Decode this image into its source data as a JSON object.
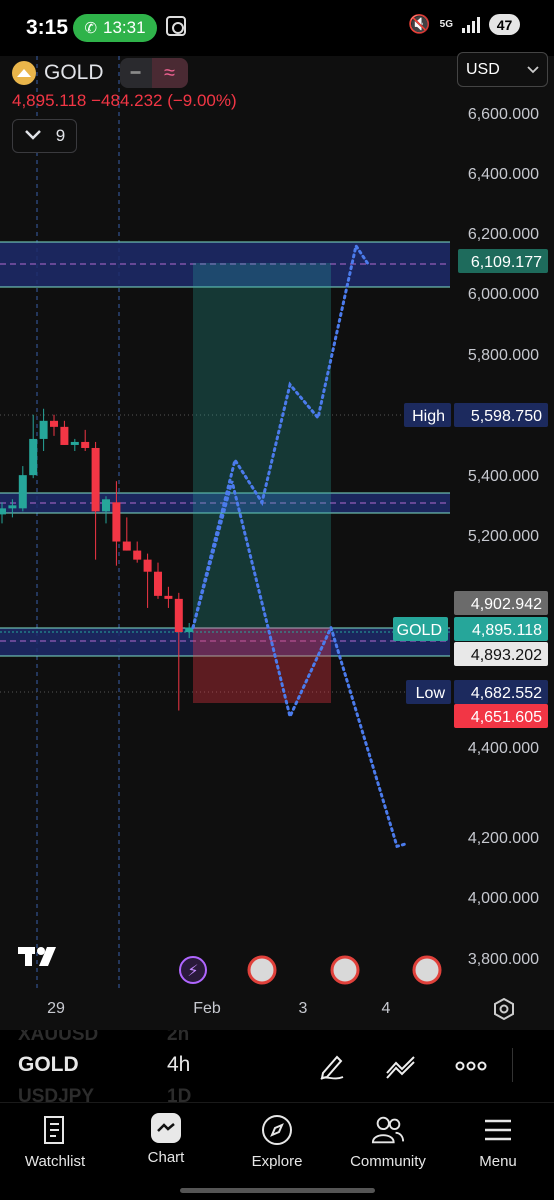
{
  "status_bar": {
    "time": "3:15",
    "call_duration": "13:31",
    "network": "5G",
    "battery": "47"
  },
  "symbol": {
    "name": "GOLD",
    "price": "4,895.118",
    "change": "−484.232 (−9.00%)",
    "indicator_count": "9",
    "currency": "USD"
  },
  "price_axis": {
    "ticks": [
      "6,600.000",
      "6,400.000",
      "6,200.000",
      "6,000.000",
      "5,800.000",
      "5,400.000",
      "5,200.000",
      "4,400.000",
      "4,200.000",
      "4,000.000",
      "3,800.000"
    ],
    "tags": {
      "tp": "6,109.177",
      "high_label": "High",
      "high_value": "5,598.750",
      "upper": "4,902.942",
      "symbol_label": "GOLD",
      "last": "4,895.118",
      "lower": "4,893.202",
      "low_label": "Low",
      "low_value": "4,682.552",
      "sl": "4,651.605"
    }
  },
  "time_axis": {
    "labels": [
      "29",
      "Feb",
      "3",
      "4"
    ]
  },
  "toolbar": {
    "symbol": "GOLD",
    "interval": "4h",
    "prev_symbol": "XAUUSD",
    "prev_interval": "2h",
    "next_symbol": "USDJPY",
    "next_interval": "1D"
  },
  "nav": {
    "watchlist": "Watchlist",
    "chart": "Chart",
    "explore": "Explore",
    "community": "Community",
    "menu": "Menu"
  },
  "colors": {
    "bull": "#26a69a",
    "bear": "#f23645",
    "projection": "#4b7bec",
    "zone": "#1d2a6b"
  },
  "chart_data": {
    "type": "candlestick",
    "yrange": [
      3700,
      6700
    ],
    "candles": [
      {
        "o": 5270,
        "h": 5310,
        "l": 5240,
        "c": 5290
      },
      {
        "o": 5290,
        "h": 5320,
        "l": 5260,
        "c": 5300
      },
      {
        "o": 5290,
        "h": 5430,
        "l": 5280,
        "c": 5400
      },
      {
        "o": 5400,
        "h": 5600,
        "l": 5390,
        "c": 5520
      },
      {
        "o": 5520,
        "h": 5620,
        "l": 5480,
        "c": 5580
      },
      {
        "o": 5580,
        "h": 5600,
        "l": 5530,
        "c": 5560
      },
      {
        "o": 5560,
        "h": 5580,
        "l": 5500,
        "c": 5500
      },
      {
        "o": 5500,
        "h": 5520,
        "l": 5480,
        "c": 5510
      },
      {
        "o": 5510,
        "h": 5550,
        "l": 5480,
        "c": 5490
      },
      {
        "o": 5490,
        "h": 5510,
        "l": 5120,
        "c": 5280
      },
      {
        "o": 5280,
        "h": 5330,
        "l": 5240,
        "c": 5320
      },
      {
        "o": 5310,
        "h": 5380,
        "l": 5100,
        "c": 5180
      },
      {
        "o": 5180,
        "h": 5260,
        "l": 5150,
        "c": 5150
      },
      {
        "o": 5150,
        "h": 5180,
        "l": 5110,
        "c": 5120
      },
      {
        "o": 5120,
        "h": 5140,
        "l": 4960,
        "c": 5080
      },
      {
        "o": 5080,
        "h": 5110,
        "l": 4990,
        "c": 5000
      },
      {
        "o": 5000,
        "h": 5030,
        "l": 4960,
        "c": 4990
      },
      {
        "o": 4990,
        "h": 5010,
        "l": 4620,
        "c": 4880
      },
      {
        "o": 4880,
        "h": 4910,
        "l": 4860,
        "c": 4895
      }
    ],
    "projection_up": [
      [
        4895,
        0
      ],
      [
        5450,
        1
      ],
      [
        5310,
        2
      ],
      [
        5700,
        3
      ],
      [
        5590,
        4
      ],
      [
        6160,
        5
      ],
      [
        6100,
        6
      ]
    ],
    "projection_down": [
      [
        4895,
        0
      ],
      [
        5380,
        1
      ],
      [
        4600,
        2
      ],
      [
        4895,
        3
      ],
      [
        4170,
        4
      ],
      [
        4180,
        5
      ]
    ]
  }
}
